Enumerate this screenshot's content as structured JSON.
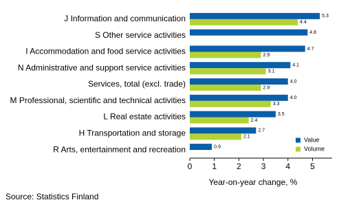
{
  "chart_data": {
    "type": "bar",
    "orientation": "horizontal",
    "categories": [
      "J Information and communication",
      "S Other service activities",
      "I Accommodation and food service activities",
      "N Administrative and support service activities",
      "Services, total (excl. trade)",
      "M Professional, scientific and technical activities",
      "L Real estate activities",
      "H Transportation and storage",
      "R Arts, entertainment and recreation"
    ],
    "series": [
      {
        "name": "Value",
        "color": "#0b5ea8",
        "values": [
          5.3,
          4.8,
          4.7,
          4.1,
          4.0,
          4.0,
          3.5,
          2.7,
          0.9
        ],
        "value_labels": [
          "5.3",
          "4.8",
          "4.7",
          "4.1",
          "4.0",
          "4.0",
          "3.5",
          "2.7",
          "0.9"
        ]
      },
      {
        "name": "Volume",
        "color": "#b3d334",
        "values": [
          4.4,
          null,
          2.9,
          3.1,
          2.9,
          3.3,
          2.4,
          2.1,
          null
        ],
        "value_labels": [
          "4.4",
          null,
          "2.9",
          "3.1",
          "2.9",
          "3.3",
          "2.4",
          "2.1",
          null
        ]
      }
    ],
    "xlim": [
      0,
      5.8
    ],
    "xticks": [
      0,
      1,
      2,
      3,
      4,
      5
    ],
    "xlabel": "Year-on-year change, %",
    "legend": "lower right",
    "source": "Source: Statistics Finland"
  }
}
